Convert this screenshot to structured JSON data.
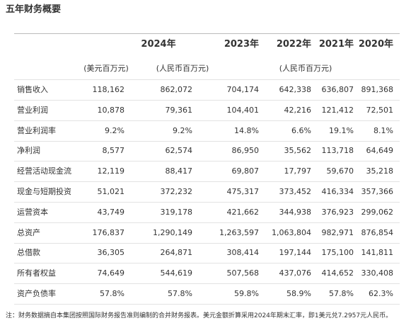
{
  "title": "五年财务概要",
  "table": {
    "header": [
      "2024年",
      "2023年",
      "2022年",
      "2021年",
      "2020年"
    ],
    "units": [
      "(美元百万元)",
      "(人民币百万元)",
      "(人民币百万元)"
    ],
    "rows": [
      [
        "销售收入",
        "118,162",
        "862,072",
        "704,174",
        "642,338",
        "636,807",
        "891,368"
      ],
      [
        "营业利润",
        "10,878",
        "79,361",
        "104,401",
        "42,216",
        "121,412",
        "72,501"
      ],
      [
        "营业利润率",
        "9.2%",
        "9.2%",
        "14.8%",
        "6.6%",
        "19.1%",
        "8.1%"
      ],
      [
        "净利润",
        "8,577",
        "62,574",
        "86,950",
        "35,562",
        "113,718",
        "64,649"
      ],
      [
        "经营活动现金流",
        "12,119",
        "88,417",
        "69,807",
        "17,797",
        "59,670",
        "35,218"
      ],
      [
        "现金与短期投资",
        "51,021",
        "372,232",
        "475,317",
        "373,452",
        "416,334",
        "357,366"
      ],
      [
        "运营资本",
        "43,749",
        "319,178",
        "421,662",
        "344,938",
        "376,923",
        "299,062"
      ],
      [
        "总资产",
        "176,837",
        "1,290,149",
        "1,263,597",
        "1,063,804",
        "982,971",
        "876,854"
      ],
      [
        "总借款",
        "36,305",
        "264,871",
        "308,414",
        "197,144",
        "175,100",
        "141,811"
      ],
      [
        "所有者权益",
        "74,649",
        "544,619",
        "507,568",
        "437,076",
        "414,652",
        "330,408"
      ],
      [
        "资产负债率",
        "57.8%",
        "57.8%",
        "59.8%",
        "58.9%",
        "57.8%",
        "62.3%"
      ]
    ]
  },
  "footnote": "注：财务数据摘自本集团按照国际财务报告准则编制的合并财务报表。美元金额折算采用2024年期末汇率，即1美元兑7.2957元人民币。"
}
